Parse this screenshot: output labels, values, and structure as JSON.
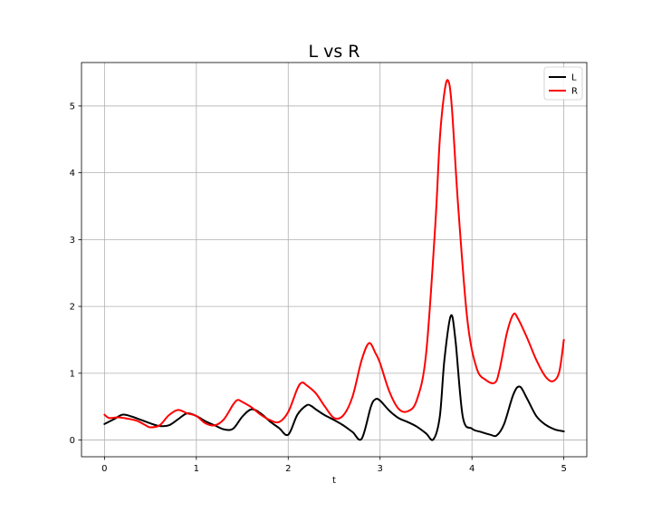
{
  "chart_data": {
    "type": "line",
    "title": "L vs R",
    "xlabel": "t",
    "ylabel": "",
    "xlim": [
      -0.25,
      5.25
    ],
    "ylim": [
      -0.25,
      5.65
    ],
    "xticks": [
      0,
      1,
      2,
      3,
      4,
      5
    ],
    "yticks": [
      0,
      1,
      2,
      3,
      4,
      5
    ],
    "xtick_labels": [
      "0",
      "1",
      "2",
      "3",
      "4",
      "5"
    ],
    "ytick_labels": [
      "0",
      "1",
      "2",
      "3",
      "4",
      "5"
    ],
    "grid": true,
    "legend": "top-right",
    "series": [
      {
        "name": "L",
        "color": "#000000",
        "x": [
          0,
          0.1,
          0.2,
          0.3,
          0.4,
          0.5,
          0.6,
          0.7,
          0.8,
          0.9,
          1.0,
          1.1,
          1.2,
          1.3,
          1.4,
          1.5,
          1.6,
          1.7,
          1.8,
          1.9,
          2.0,
          2.1,
          2.2,
          2.25,
          2.3,
          2.4,
          2.5,
          2.6,
          2.7,
          2.8,
          2.9,
          2.95,
          3.0,
          3.1,
          3.2,
          3.3,
          3.4,
          3.5,
          3.58,
          3.65,
          3.7,
          3.77,
          3.82,
          3.9,
          4.0,
          4.1,
          4.2,
          4.27,
          4.35,
          4.45,
          4.52,
          4.6,
          4.7,
          4.8,
          4.9,
          5.0
        ],
        "y": [
          0.24,
          0.31,
          0.38,
          0.35,
          0.3,
          0.25,
          0.21,
          0.22,
          0.31,
          0.4,
          0.36,
          0.28,
          0.22,
          0.16,
          0.17,
          0.35,
          0.46,
          0.4,
          0.28,
          0.18,
          0.08,
          0.38,
          0.52,
          0.51,
          0.46,
          0.37,
          0.3,
          0.22,
          0.12,
          0.02,
          0.5,
          0.61,
          0.59,
          0.44,
          0.33,
          0.27,
          0.2,
          0.1,
          0.01,
          0.35,
          1.2,
          1.86,
          1.5,
          0.35,
          0.17,
          0.12,
          0.08,
          0.07,
          0.24,
          0.68,
          0.8,
          0.62,
          0.36,
          0.23,
          0.16,
          0.13
        ]
      },
      {
        "name": "R",
        "color": "#ff0000",
        "x": [
          0,
          0.05,
          0.15,
          0.25,
          0.35,
          0.45,
          0.5,
          0.6,
          0.7,
          0.8,
          0.9,
          1.0,
          1.1,
          1.2,
          1.3,
          1.4,
          1.45,
          1.5,
          1.6,
          1.7,
          1.8,
          1.9,
          2.0,
          2.1,
          2.15,
          2.2,
          2.3,
          2.4,
          2.5,
          2.6,
          2.7,
          2.8,
          2.88,
          2.95,
          3.0,
          3.1,
          3.2,
          3.3,
          3.4,
          3.5,
          3.6,
          3.65,
          3.7,
          3.74,
          3.78,
          3.85,
          3.95,
          4.05,
          4.15,
          4.25,
          4.3,
          4.38,
          4.45,
          4.5,
          4.6,
          4.7,
          4.8,
          4.88,
          4.95,
          5.0
        ],
        "y": [
          0.38,
          0.33,
          0.34,
          0.32,
          0.29,
          0.22,
          0.19,
          0.22,
          0.37,
          0.45,
          0.4,
          0.36,
          0.25,
          0.22,
          0.31,
          0.53,
          0.6,
          0.57,
          0.49,
          0.38,
          0.3,
          0.27,
          0.42,
          0.77,
          0.86,
          0.82,
          0.7,
          0.5,
          0.33,
          0.37,
          0.65,
          1.2,
          1.45,
          1.3,
          1.15,
          0.73,
          0.47,
          0.43,
          0.6,
          1.28,
          3.2,
          4.5,
          5.2,
          5.38,
          5.0,
          3.5,
          1.8,
          1.08,
          0.9,
          0.86,
          1.05,
          1.6,
          1.88,
          1.82,
          1.53,
          1.2,
          0.95,
          0.88,
          1.02,
          1.5
        ]
      }
    ]
  }
}
